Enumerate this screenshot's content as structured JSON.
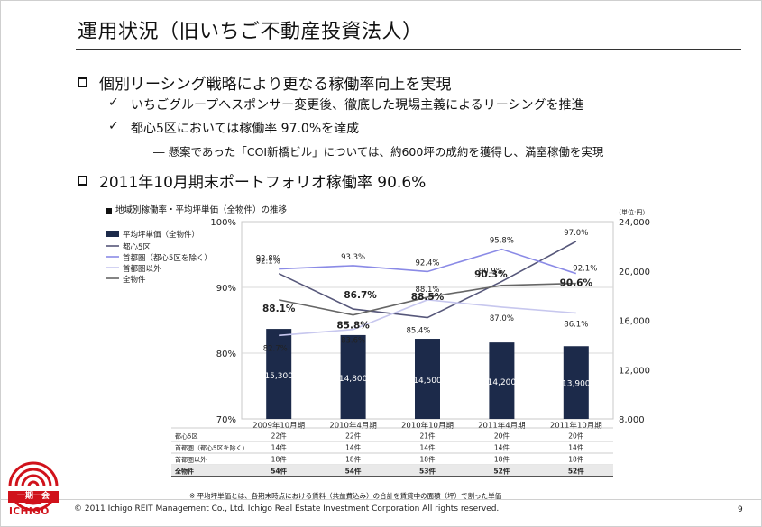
{
  "slide": {
    "title": "運用状況（旧いちご不動産投資法人）",
    "page_number": "9",
    "footer": "© 2011 Ichigo REIT Management Co., Ltd.  Ichigo Real Estate Investment Corporation  All rights reserved.",
    "logo": {
      "jp": "一期一会",
      "en": "ICHIGO"
    }
  },
  "bullets": [
    {
      "text": "個別リーシング戦略により更なる稼働率向上を実現",
      "sub": [
        {
          "text": "いちごグループへスポンサー変更後、徹底した現場主義によるリーシングを推進"
        },
        {
          "text": "都心5区においては稼働率 97.0%を達成"
        }
      ],
      "subsub": "―  懸案であった「COI新橋ビル」については、約600坪の成約を獲得し、満室稼働を実現"
    },
    {
      "text": "2011年10月期末ポートフォリオ稼働率 90.6%"
    }
  ],
  "icons": {
    "checkmark": "✓",
    "bullet": "square-bullet-icon"
  },
  "chart_data": {
    "type": "bar",
    "title": "地域別稼働率・平均坪単価（全物件）の推移",
    "unit_label": "（単位:円）",
    "categories": [
      "2009年10月期",
      "2010年4月期",
      "2010年10月期",
      "2011年4月期",
      "2011年10月期"
    ],
    "bars": {
      "name": "平均坪単価（全物件）",
      "values": [
        15300,
        14800,
        14500,
        14200,
        13900
      ],
      "labels": [
        "15,300",
        "14,800",
        "14,500",
        "14,200",
        "13,900"
      ],
      "color": "#1c2a4a"
    },
    "lines": [
      {
        "name": "都心5区",
        "values": [
          92.1,
          86.7,
          85.4,
          90.9,
          97.0
        ],
        "labels": [
          "92.1%",
          "",
          "85.4%",
          "90.9%",
          "97.0%"
        ],
        "color": "#56577a"
      },
      {
        "name": "首都圏（都心5区を除く）",
        "values": [
          92.8,
          93.3,
          92.4,
          95.8,
          92.1
        ],
        "labels": [
          "92.8%",
          "93.3%",
          "92.4%",
          "95.8%",
          "92.1%"
        ],
        "color": "#8a8ae6"
      },
      {
        "name": "首都圏以外",
        "values": [
          82.7,
          83.6,
          88.1,
          87.0,
          86.1
        ],
        "labels": [
          "82.7%",
          "83.6%",
          "88.1%",
          "87.0%",
          "86.1%"
        ],
        "color": "#c7c7ee"
      },
      {
        "name": "全物件",
        "values": [
          88.1,
          85.8,
          88.5,
          90.3,
          90.6
        ],
        "labels": [
          "88.1%",
          "85.8%",
          "88.5%",
          "90.3%",
          "90.6%"
        ],
        "color": "#666666"
      }
    ],
    "bold_labels": [
      "88.1%",
      "86.7%",
      "88.5%",
      "90.3%",
      "90.6%"
    ],
    "y_left": {
      "min": 70,
      "max": 100,
      "ticks": [
        "70%",
        "80%",
        "90%",
        "100%"
      ]
    },
    "y_right": {
      "min": 8000,
      "max": 24000,
      "ticks": [
        "8,000",
        "12,000",
        "16,000",
        "20,000",
        "24,000"
      ]
    },
    "legend_position": "top-left",
    "table": {
      "rows": [
        {
          "label": "都心5区",
          "values": [
            "22件",
            "22件",
            "21件",
            "20件",
            "20件"
          ]
        },
        {
          "label": "首都圏（都心5区を除く）",
          "values": [
            "14件",
            "14件",
            "14件",
            "14件",
            "14件"
          ]
        },
        {
          "label": "首都圏以外",
          "values": [
            "18件",
            "18件",
            "18件",
            "18件",
            "18件"
          ]
        },
        {
          "label": "全物件",
          "values": [
            "54件",
            "54件",
            "53件",
            "52件",
            "52件"
          ]
        }
      ]
    },
    "note": "※ 平均坪単価とは、各期末時点における賃料（共益費込み）の合計を賃貸中の面積（坪）で割った単価"
  }
}
